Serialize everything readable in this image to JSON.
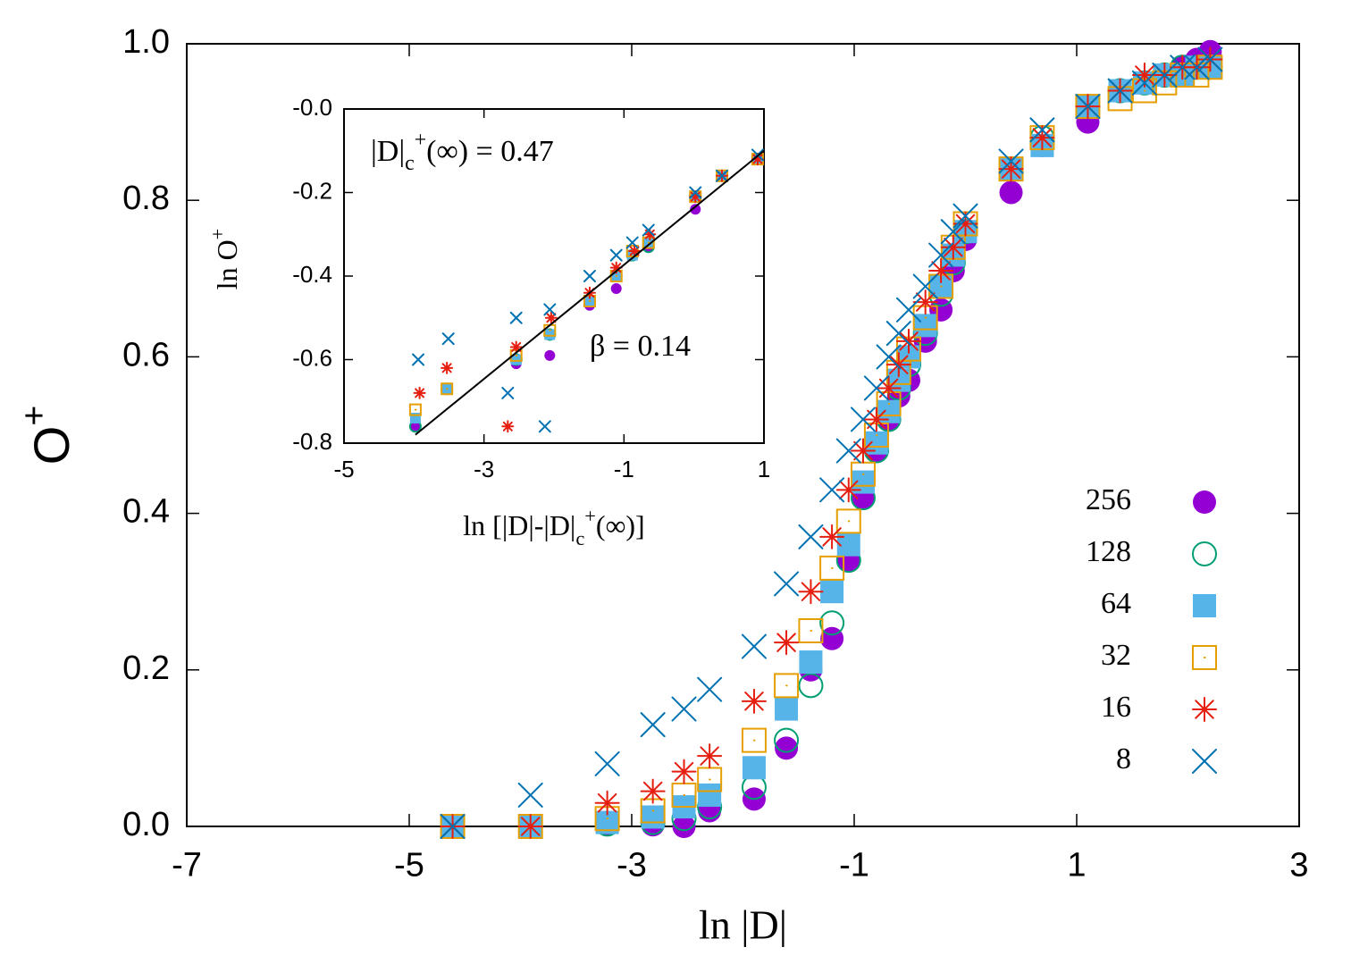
{
  "chart_data": [
    {
      "type": "scatter",
      "x_label": "ln |D|",
      "y_label": [
        {
          "text": "O"
        },
        {
          "text": "+",
          "sup": true
        }
      ],
      "xlim": [
        -7,
        3
      ],
      "xticks": [
        -7,
        -5,
        -3,
        -1,
        1,
        3
      ],
      "ylim": [
        0,
        1
      ],
      "yticks": [
        {
          "value": 0,
          "label": "0.0"
        },
        0.2,
        0.4,
        0.6,
        0.8,
        {
          "value": 1,
          "label": "1.0"
        }
      ],
      "legend": "bottom right",
      "x": [
        -4.61,
        -3.91,
        -3.22,
        -2.81,
        -2.53,
        -2.3,
        -1.9,
        -1.61,
        -1.39,
        -1.2,
        -1.05,
        -0.92,
        -0.8,
        -0.69,
        -0.6,
        -0.51,
        -0.36,
        -0.22,
        -0.11,
        0.0,
        0.41,
        0.69,
        1.1,
        1.39,
        1.61,
        1.79,
        1.95,
        2.08,
        2.2
      ],
      "series": [
        {
          "name": "256",
          "color": "#9400d3",
          "marker": "filled-circle",
          "values": [
            0,
            0,
            0.003,
            0.002,
            0,
            0.02,
            0.035,
            0.1,
            0.2,
            0.24,
            0.34,
            0.42,
            0.48,
            0.52,
            0.55,
            0.57,
            0.62,
            0.66,
            0.71,
            0.75,
            0.81,
            0.87,
            0.9,
            0.94,
            0.95,
            0.96,
            0.97,
            0.98,
            0.99
          ]
        },
        {
          "name": "128",
          "color": "#009e73",
          "marker": "open-circle",
          "values": [
            0,
            0,
            0.003,
            0.005,
            0.01,
            0.025,
            0.05,
            0.11,
            0.18,
            0.26,
            0.34,
            0.42,
            0.48,
            0.52,
            0.56,
            0.59,
            0.63,
            0.68,
            0.72,
            0.76,
            0.84,
            0.88,
            0.92,
            0.94,
            0.95,
            0.96,
            0.97,
            0.97,
            0.97
          ]
        },
        {
          "name": "64",
          "color": "#56b4e9",
          "marker": "filled-square",
          "values": [
            0,
            0,
            0.005,
            0.012,
            0.025,
            0.04,
            0.075,
            0.15,
            0.21,
            0.3,
            0.36,
            0.44,
            0.49,
            0.53,
            0.57,
            0.6,
            0.64,
            0.69,
            0.73,
            0.76,
            0.84,
            0.87,
            0.92,
            0.94,
            0.95,
            0.96,
            0.96,
            0.97,
            0.97
          ]
        },
        {
          "name": "32",
          "color": "#e69f00",
          "marker": "open-square",
          "values": [
            0,
            0,
            0.01,
            0.02,
            0.04,
            0.06,
            0.11,
            0.18,
            0.25,
            0.33,
            0.39,
            0.45,
            0.5,
            0.54,
            0.58,
            0.61,
            0.65,
            0.69,
            0.74,
            0.77,
            0.84,
            0.88,
            0.92,
            0.93,
            0.94,
            0.95,
            0.96,
            0.96,
            0.97
          ]
        },
        {
          "name": "16",
          "color": "#e51e10",
          "marker": "star",
          "values": [
            0,
            0,
            0.03,
            0.045,
            0.07,
            0.09,
            0.16,
            0.235,
            0.3,
            0.37,
            0.43,
            0.48,
            0.52,
            0.56,
            0.59,
            0.62,
            0.67,
            0.71,
            0.74,
            0.77,
            0.84,
            0.88,
            0.92,
            0.94,
            0.96,
            0.96,
            0.97,
            0.97,
            0.98
          ]
        },
        {
          "name": "8",
          "color": "#0072b2",
          "marker": "cross",
          "values": [
            0,
            0.04,
            0.08,
            0.13,
            0.15,
            0.175,
            0.23,
            0.31,
            0.37,
            0.43,
            0.48,
            0.52,
            0.56,
            0.6,
            0.63,
            0.66,
            0.69,
            0.73,
            0.76,
            0.78,
            0.85,
            0.89,
            0.92,
            0.94,
            0.95,
            0.96,
            0.97,
            0.97,
            0.98
          ]
        }
      ]
    },
    {
      "type": "scatter",
      "x_label": [
        {
          "text": "ln [|D|-|D|"
        },
        {
          "text": "c",
          "sub": true
        },
        {
          "text": "+",
          "sup": true
        },
        {
          "text": "(∞)]"
        }
      ],
      "y_label": [
        {
          "text": "ln O"
        },
        {
          "text": "+",
          "sup": true
        }
      ],
      "annotations": [
        [
          {
            "text": "|D|"
          },
          {
            "text": "c",
            "sub": true
          },
          {
            "text": "+",
            "sup": true
          },
          {
            "text": "(∞) = 0.47"
          }
        ],
        [
          {
            "text": "β = 0.14"
          }
        ]
      ],
      "xlim": [
        -5,
        1
      ],
      "xticks": [
        -5,
        -3,
        -1,
        1
      ],
      "ylim": [
        -0.8,
        0
      ],
      "yticks": [
        -0.8,
        -0.6,
        -0.4,
        -0.2,
        {
          "value": 0,
          "label": "-0.0"
        }
      ],
      "x": [
        -3.98,
        -3.53,
        -2.54,
        -2.06,
        -1.49,
        -1.11,
        -0.88,
        -0.65,
        0.02,
        0.4,
        0.91
      ],
      "fit_line": {
        "color": "#000000",
        "x": [
          -3.98,
          1
        ],
        "y": [
          -0.78,
          -0.1
        ]
      },
      "series": [
        {
          "color": "#9400d3",
          "marker": "filled-circle",
          "values": [
            -0.76,
            -0.67,
            -0.61,
            -0.59,
            -0.47,
            -0.43,
            -0.35,
            -0.33,
            -0.24,
            -0.16,
            -0.12
          ]
        },
        {
          "color": "#009e73",
          "marker": "open-circle",
          "values": [
            -0.76,
            -0.67,
            -0.6,
            -0.54,
            -0.46,
            -0.4,
            -0.35,
            -0.33,
            -0.21,
            -0.16,
            -0.12
          ]
        },
        {
          "color": "#56b4e9",
          "marker": "filled-square",
          "values": [
            -0.74,
            -0.67,
            -0.6,
            -0.54,
            -0.46,
            -0.4,
            -0.35,
            -0.32,
            -0.21,
            -0.16,
            -0.12
          ]
        },
        {
          "color": "#e69f00",
          "marker": "open-square",
          "values": [
            -0.72,
            -0.67,
            -0.59,
            -0.53,
            -0.46,
            -0.4,
            -0.34,
            -0.32,
            -0.21,
            -0.16,
            -0.12
          ]
        },
        {
          "color": "#e51e10",
          "marker": "star",
          "x": [
            -2.66,
            -3.92,
            -3.53,
            -2.54,
            -2.04,
            -1.49,
            -1.11,
            -0.85,
            -0.63,
            0.02,
            0.4,
            0.91
          ],
          "values": [
            -0.76,
            -0.68,
            -0.62,
            -0.57,
            -0.5,
            -0.44,
            -0.38,
            -0.34,
            -0.3,
            -0.21,
            -0.16,
            -0.12
          ]
        },
        {
          "color": "#0072b2",
          "marker": "cross",
          "x": [
            -2.66,
            -2.13,
            -3.94,
            -3.51,
            -2.54,
            -2.06,
            -1.49,
            -1.11,
            -0.88,
            -0.65,
            0.02,
            0.4,
            0.91
          ],
          "values": [
            -0.68,
            -0.76,
            -0.6,
            -0.55,
            -0.5,
            -0.48,
            -0.4,
            -0.35,
            -0.32,
            -0.29,
            -0.2,
            -0.16,
            -0.11
          ]
        }
      ]
    }
  ]
}
